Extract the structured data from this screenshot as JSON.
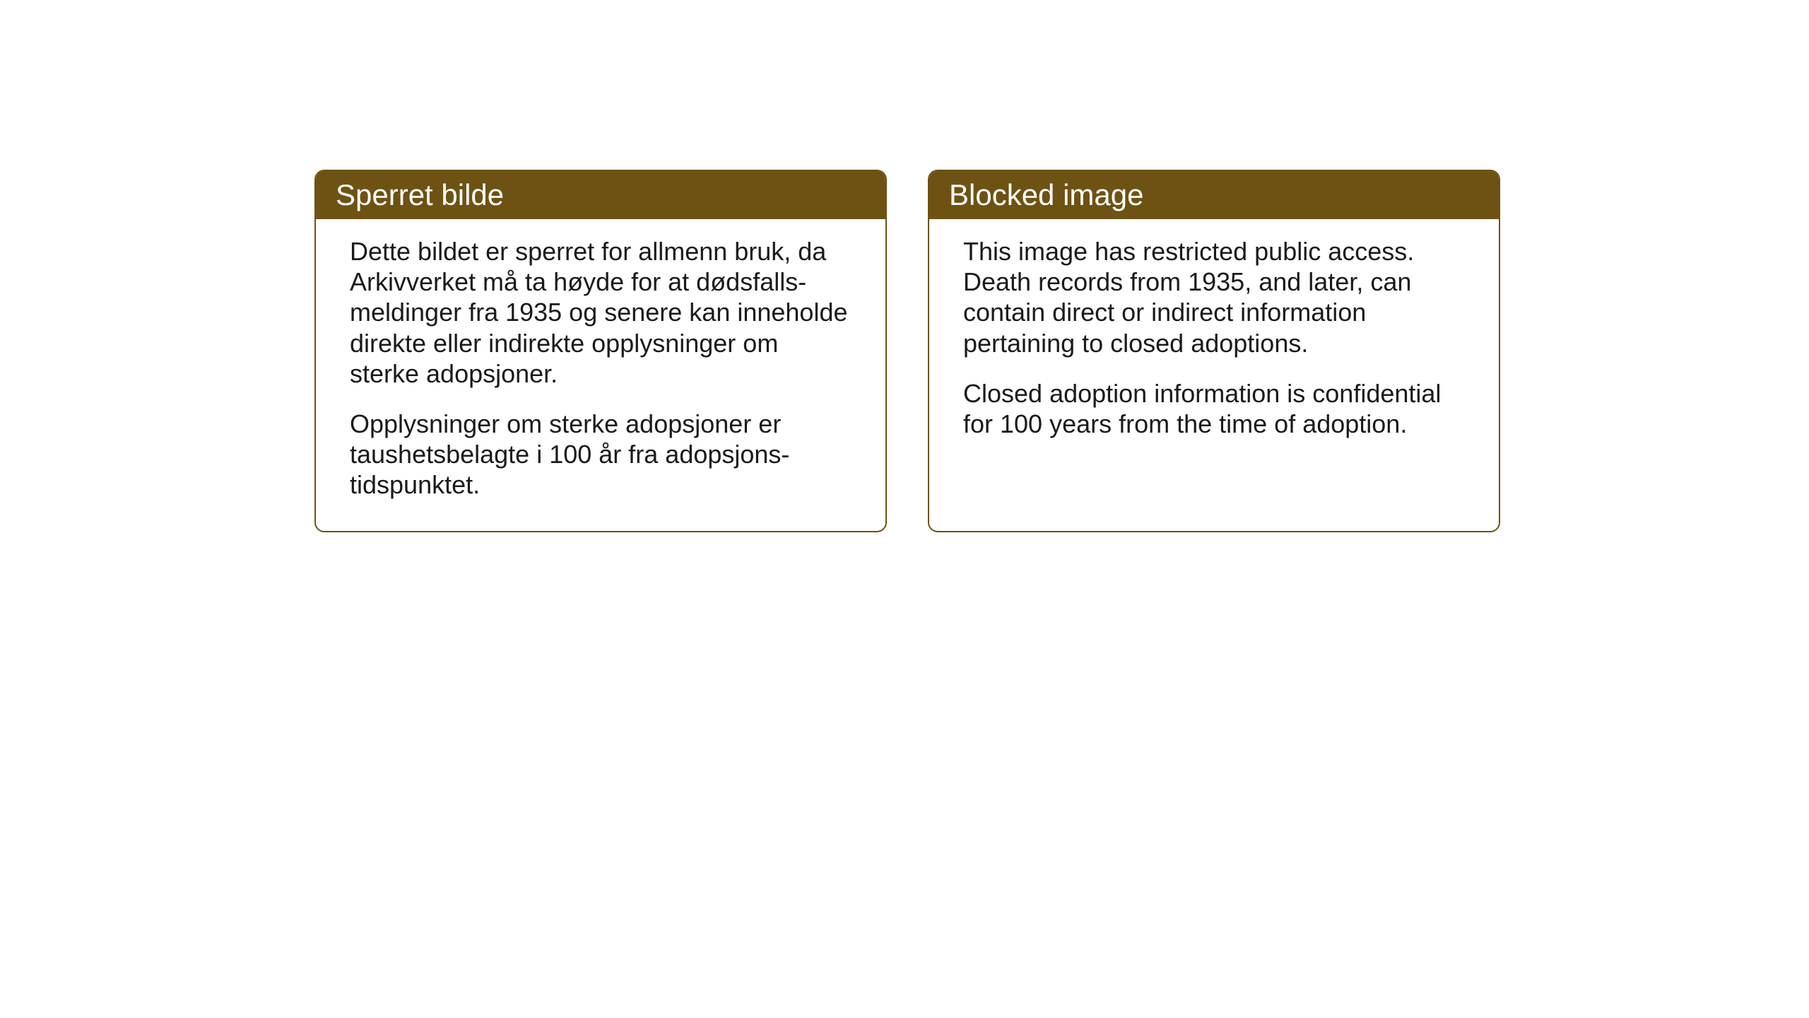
{
  "cards": {
    "norwegian": {
      "title": "Sperret bilde",
      "paragraph1": "Dette bildet er sperret for allmenn bruk, da Arkivverket må ta høyde for at dødsfalls-meldinger fra 1935 og senere kan inneholde direkte eller indirekte opplysninger om sterke adopsjoner.",
      "paragraph2": "Opplysninger om sterke adopsjoner er taushetsbelagte i 100 år fra adopsjons-tidspunktet."
    },
    "english": {
      "title": "Blocked image",
      "paragraph1": "This image has restricted public access. Death records from 1935, and later, can contain direct or indirect information pertaining to closed adoptions.",
      "paragraph2": "Closed adoption information is confidential for 100 years from the time of adoption."
    }
  },
  "styling": {
    "header_background_color": "#6d5213",
    "header_text_color": "#ffffff",
    "border_color": "#6d5213",
    "body_background_color": "#ffffff",
    "body_text_color": "#1a1a1a",
    "border_radius": 14,
    "header_fontsize": 42,
    "body_fontsize": 36
  }
}
